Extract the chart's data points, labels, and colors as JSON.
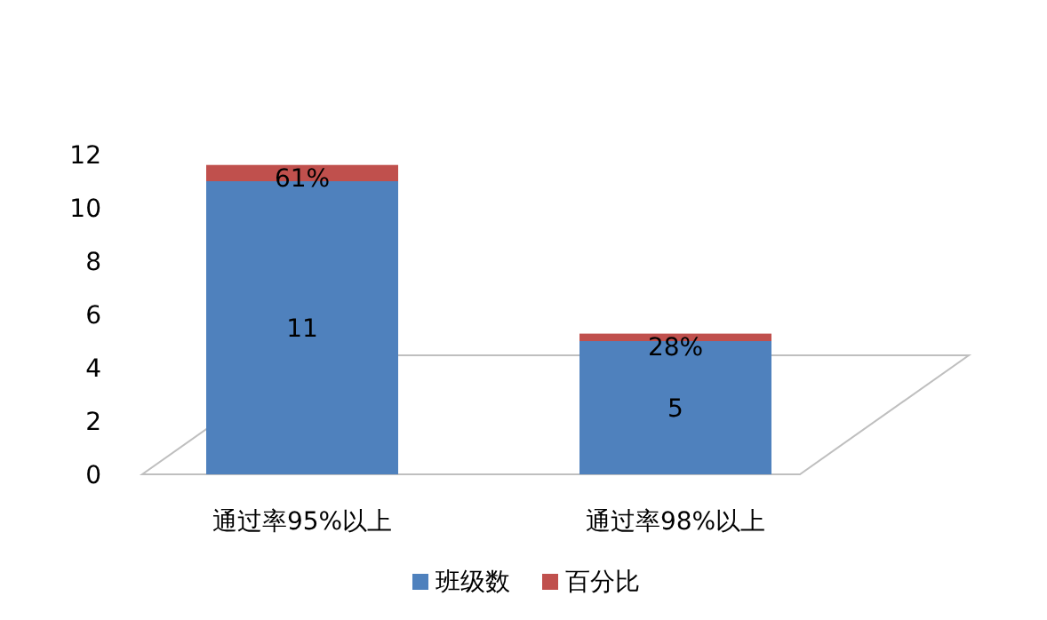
{
  "chart_data": {
    "type": "bar",
    "stacked": true,
    "categories": [
      "通过率95%以上",
      "通过率98%以上"
    ],
    "series": [
      {
        "name": "班级数",
        "color": "#4f81bd",
        "values": [
          11,
          5
        ],
        "value_labels": [
          "11",
          "5"
        ]
      },
      {
        "name": "百分比",
        "color": "#c0504d",
        "values": [
          0.61,
          0.28
        ],
        "value_labels": [
          "61%",
          "28%"
        ]
      }
    ],
    "ylim": [
      0,
      12
    ],
    "yticks": [
      0,
      2,
      4,
      6,
      8,
      10,
      12
    ],
    "legend": "bottom"
  }
}
